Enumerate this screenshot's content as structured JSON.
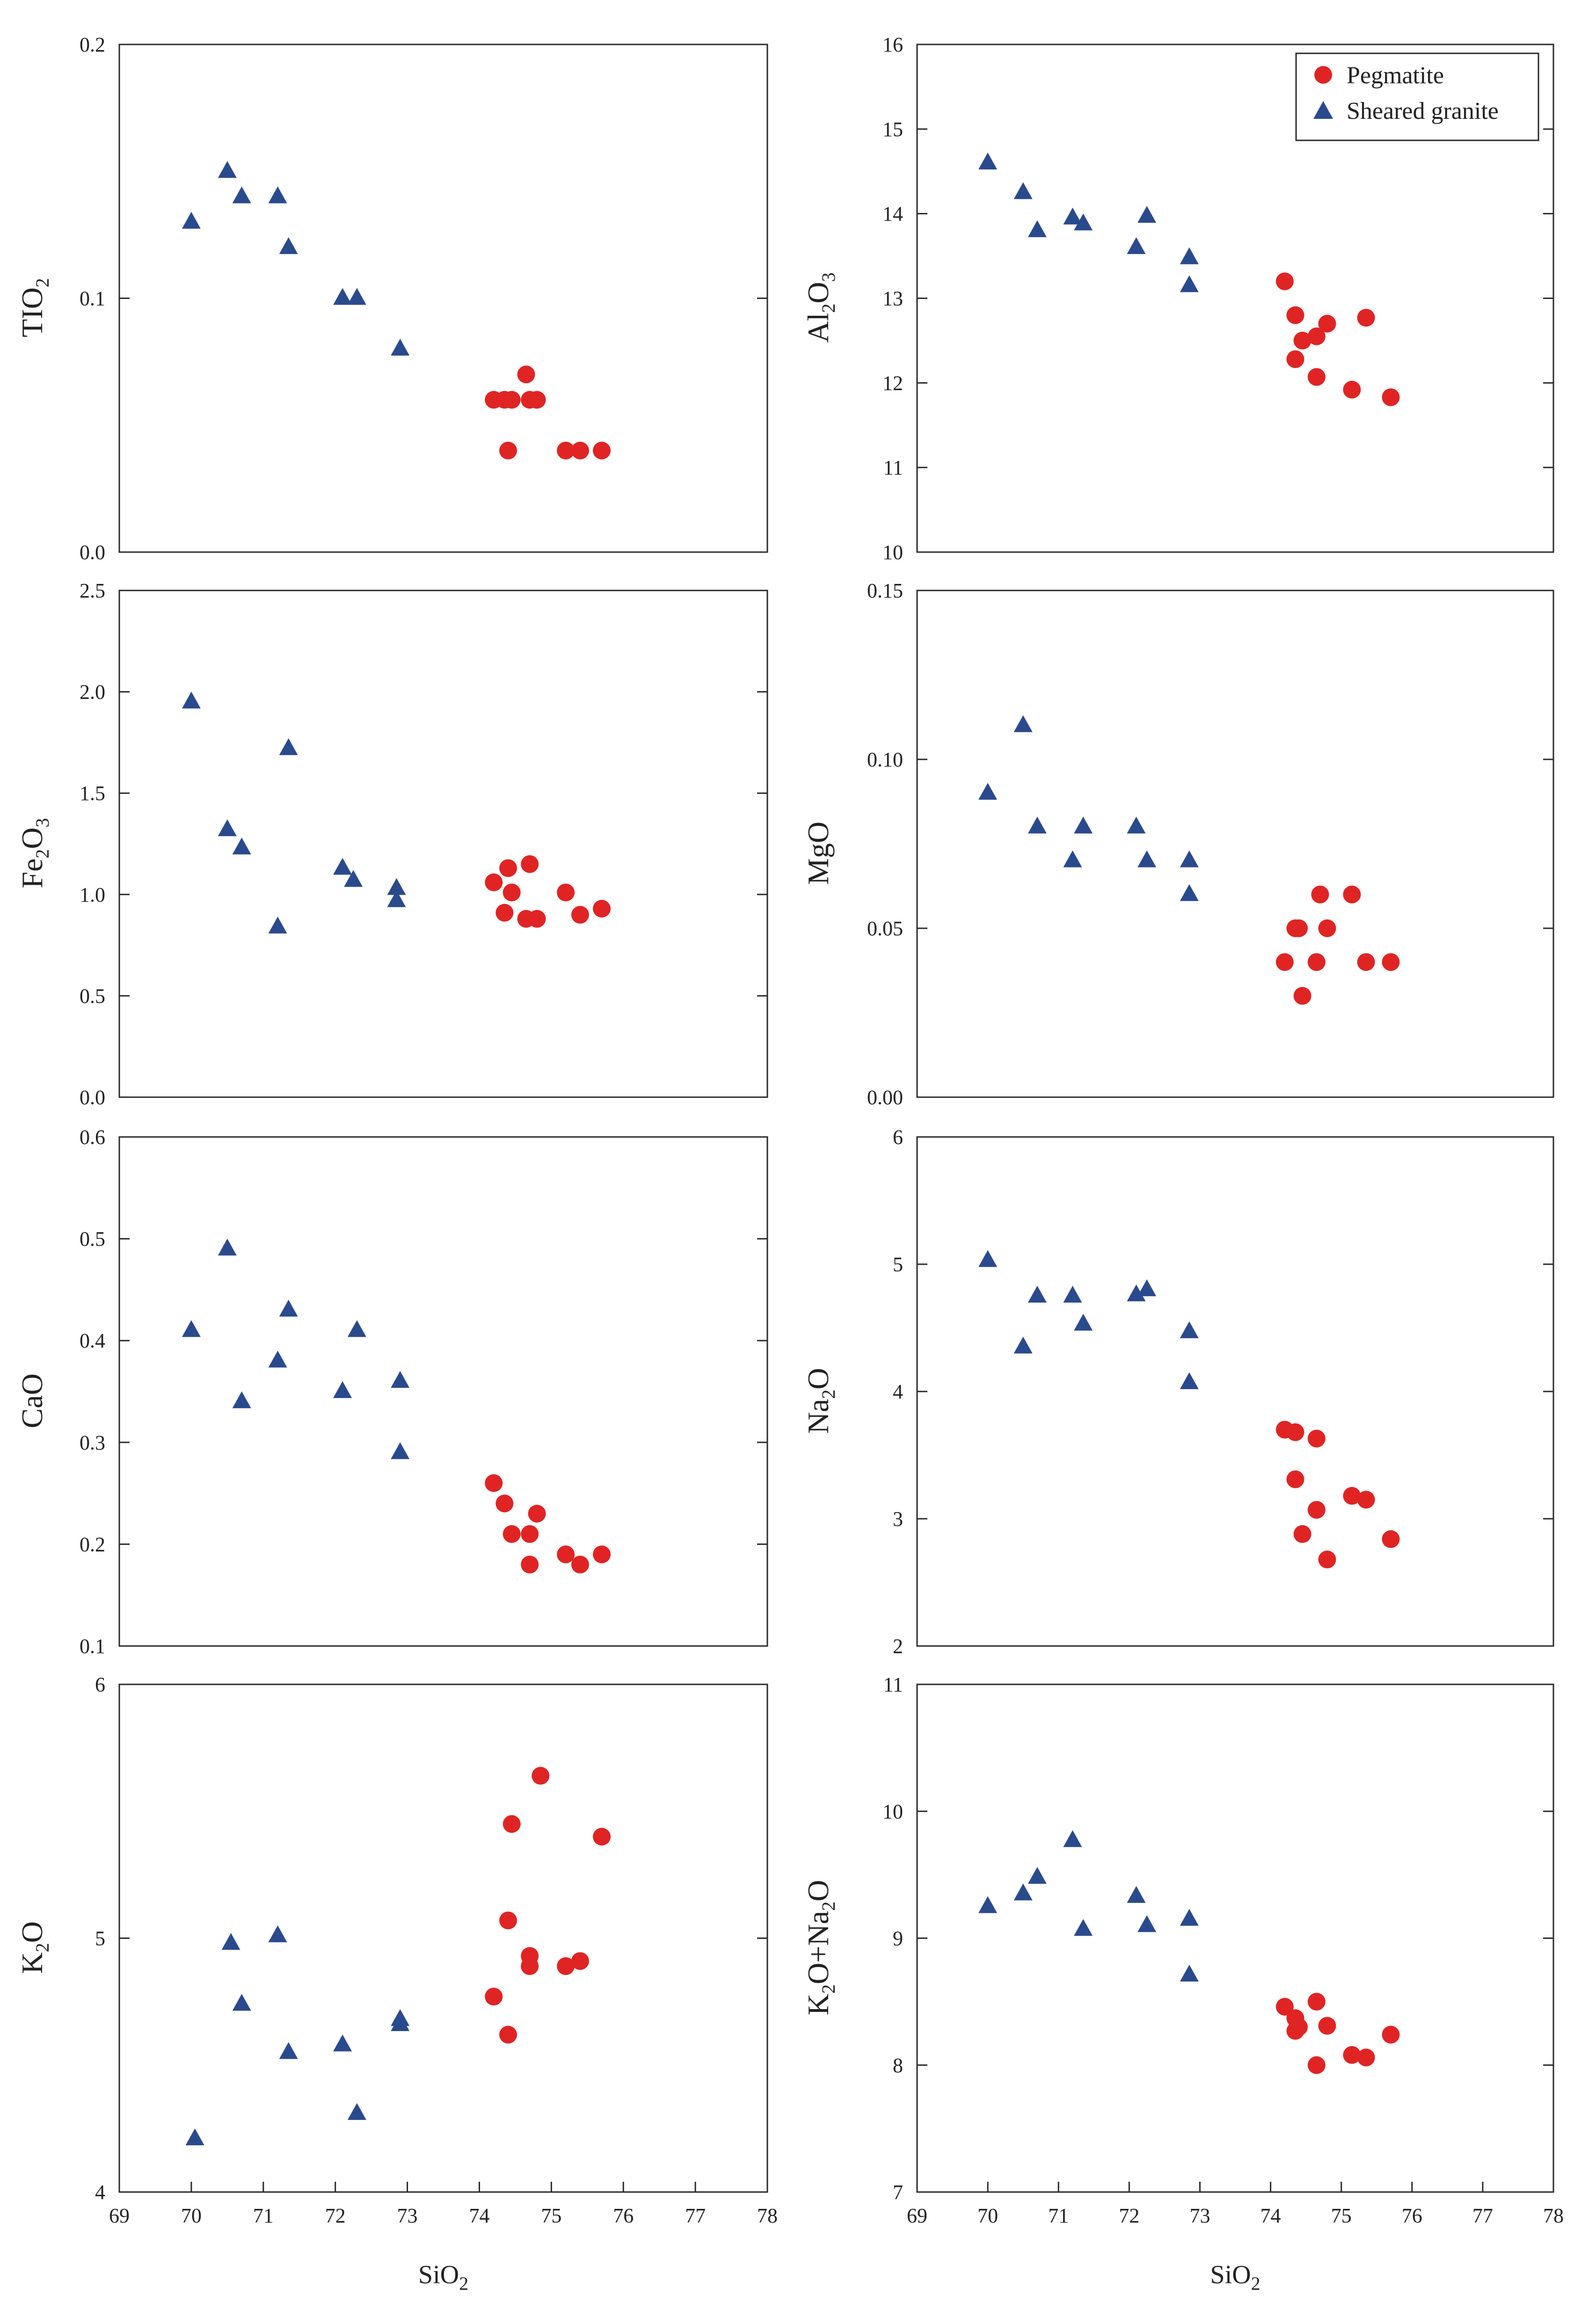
{
  "colors": {
    "pegmatite": "#e02424",
    "sheared_granite": "#2a4a8e"
  },
  "legend": {
    "pegmatite": "Pegmatite",
    "sheared_granite": "Sheared granite",
    "pegmatite_marker": "circle",
    "sheared_granite_marker": "triangle"
  },
  "chart_data": [
    {
      "type": "scatter",
      "id": "tio2",
      "ylabel": [
        "TIO",
        "2",
        ""
      ],
      "xlabel": "",
      "xlim": [
        69,
        78
      ],
      "ylim": [
        0.0,
        0.2
      ],
      "yticks": [
        0.0,
        0.1,
        0.2
      ],
      "ytick_labels": [
        "0.0",
        "0.1",
        "0.2"
      ],
      "xticks": [],
      "xtick_labels": [],
      "series": [
        {
          "name": "Sheared granite",
          "marker": "triangle",
          "x": [
            70.0,
            70.5,
            70.7,
            71.2,
            71.35,
            72.1,
            72.3,
            72.9
          ],
          "y": [
            0.13,
            0.15,
            0.14,
            0.14,
            0.12,
            0.1,
            0.1,
            0.08
          ]
        },
        {
          "name": "Pegmatite",
          "marker": "circle",
          "x": [
            74.2,
            74.35,
            74.45,
            74.4,
            74.65,
            74.7,
            74.8,
            75.2,
            75.4,
            75.7
          ],
          "y": [
            0.06,
            0.06,
            0.06,
            0.04,
            0.07,
            0.06,
            0.06,
            0.04,
            0.04,
            0.04
          ]
        }
      ]
    },
    {
      "type": "scatter",
      "id": "al2o3",
      "ylabel": [
        "Al",
        "2",
        "O",
        "3",
        ""
      ],
      "xlabel": "",
      "xlim": [
        69,
        78
      ],
      "ylim": [
        10,
        16
      ],
      "yticks": [
        10,
        11,
        12,
        13,
        14,
        15,
        16
      ],
      "ytick_labels": [
        "10",
        "11",
        "12",
        "13",
        "14",
        "15",
        "16"
      ],
      "xticks": [],
      "xtick_labels": [],
      "legend": true,
      "series": [
        {
          "name": "Sheared granite",
          "marker": "triangle",
          "x": [
            70.0,
            70.5,
            70.7,
            71.2,
            71.35,
            72.1,
            72.25,
            72.85,
            72.85
          ],
          "y": [
            14.6,
            14.25,
            13.8,
            13.95,
            13.88,
            13.6,
            13.97,
            13.48,
            13.15
          ]
        },
        {
          "name": "Pegmatite",
          "marker": "circle",
          "x": [
            74.2,
            74.35,
            74.45,
            74.35,
            74.65,
            74.8,
            74.65,
            75.15,
            75.35,
            75.7
          ],
          "y": [
            13.2,
            12.8,
            12.5,
            12.28,
            12.55,
            12.7,
            12.07,
            11.92,
            12.77,
            11.83
          ]
        }
      ]
    },
    {
      "type": "scatter",
      "id": "fe2o3",
      "ylabel": [
        "Fe",
        "2",
        "O",
        "3",
        ""
      ],
      "xlabel": "",
      "xlim": [
        69,
        78
      ],
      "ylim": [
        0.0,
        2.5
      ],
      "yticks": [
        0.0,
        0.5,
        1.0,
        1.5,
        2.0,
        2.5
      ],
      "ytick_labels": [
        "0.0",
        "0.5",
        "1.0",
        "1.5",
        "2.0",
        "2.5"
      ],
      "xticks": [],
      "xtick_labels": [],
      "series": [
        {
          "name": "Sheared granite",
          "marker": "triangle",
          "x": [
            70.0,
            70.5,
            70.7,
            71.2,
            71.35,
            72.1,
            72.25,
            72.85,
            72.85
          ],
          "y": [
            1.95,
            1.32,
            1.23,
            0.84,
            1.72,
            1.13,
            1.07,
            1.03,
            0.97
          ]
        },
        {
          "name": "Pegmatite",
          "marker": "circle",
          "x": [
            74.2,
            74.4,
            74.45,
            74.35,
            74.7,
            74.65,
            74.8,
            75.2,
            75.4,
            75.7
          ],
          "y": [
            1.06,
            1.13,
            1.01,
            0.91,
            1.15,
            0.88,
            0.88,
            1.01,
            0.9,
            0.93
          ]
        }
      ]
    },
    {
      "type": "scatter",
      "id": "mgo",
      "ylabel": [
        "MgO"
      ],
      "xlabel": "",
      "xlim": [
        69,
        78
      ],
      "ylim": [
        0.0,
        0.15
      ],
      "yticks": [
        0.0,
        0.05,
        0.1,
        0.15
      ],
      "ytick_labels": [
        "0.00",
        "0.05",
        "0.10",
        "0.15"
      ],
      "xticks": [],
      "xtick_labels": [],
      "series": [
        {
          "name": "Sheared granite",
          "marker": "triangle",
          "x": [
            70.0,
            70.5,
            70.7,
            71.2,
            71.35,
            72.1,
            72.25,
            72.85,
            72.85
          ],
          "y": [
            0.09,
            0.11,
            0.08,
            0.07,
            0.08,
            0.08,
            0.07,
            0.07,
            0.06
          ]
        },
        {
          "name": "Pegmatite",
          "marker": "circle",
          "x": [
            74.2,
            74.35,
            74.4,
            74.45,
            74.7,
            74.65,
            74.8,
            75.15,
            75.35,
            75.7
          ],
          "y": [
            0.04,
            0.05,
            0.05,
            0.03,
            0.06,
            0.04,
            0.05,
            0.06,
            0.04,
            0.04
          ]
        }
      ]
    },
    {
      "type": "scatter",
      "id": "cao",
      "ylabel": [
        "CaO"
      ],
      "xlabel": "",
      "xlim": [
        69,
        78
      ],
      "ylim": [
        0.1,
        0.6
      ],
      "yticks": [
        0.1,
        0.2,
        0.3,
        0.4,
        0.5,
        0.6
      ],
      "ytick_labels": [
        "0.1",
        "0.2",
        "0.3",
        "0.4",
        "0.5",
        "0.6"
      ],
      "xticks": [],
      "xtick_labels": [],
      "series": [
        {
          "name": "Sheared granite",
          "marker": "triangle",
          "x": [
            70.0,
            70.5,
            70.7,
            71.2,
            71.35,
            72.1,
            72.3,
            72.9,
            72.9
          ],
          "y": [
            0.41,
            0.49,
            0.34,
            0.38,
            0.43,
            0.35,
            0.41,
            0.36,
            0.29
          ]
        },
        {
          "name": "Pegmatite",
          "marker": "circle",
          "x": [
            74.2,
            74.35,
            74.45,
            74.7,
            74.7,
            74.8,
            75.2,
            75.4,
            75.7
          ],
          "y": [
            0.26,
            0.24,
            0.21,
            0.21,
            0.18,
            0.23,
            0.19,
            0.18,
            0.19
          ]
        }
      ]
    },
    {
      "type": "scatter",
      "id": "na2o",
      "ylabel": [
        "Na",
        "2",
        "O"
      ],
      "xlabel": "",
      "xlim": [
        69,
        78
      ],
      "ylim": [
        2,
        6
      ],
      "yticks": [
        2,
        3,
        4,
        5,
        6
      ],
      "ytick_labels": [
        "2",
        "3",
        "4",
        "5",
        "6"
      ],
      "xticks": [],
      "xtick_labels": [],
      "series": [
        {
          "name": "Sheared granite",
          "marker": "triangle",
          "x": [
            70.0,
            70.5,
            70.7,
            71.2,
            71.35,
            72.1,
            72.25,
            72.85,
            72.85
          ],
          "y": [
            5.03,
            4.35,
            4.75,
            4.75,
            4.53,
            4.76,
            4.8,
            4.47,
            4.07
          ]
        },
        {
          "name": "Pegmatite",
          "marker": "circle",
          "x": [
            74.2,
            74.35,
            74.35,
            74.45,
            74.65,
            74.65,
            74.8,
            75.15,
            75.35,
            75.7
          ],
          "y": [
            3.7,
            3.68,
            3.31,
            2.88,
            3.63,
            3.07,
            2.68,
            3.18,
            3.15,
            2.84
          ]
        }
      ]
    },
    {
      "type": "scatter",
      "id": "k2o",
      "ylabel": [
        "K",
        "2",
        "O"
      ],
      "xlabel": "SiO",
      "xlabel_sub": "2",
      "xlim": [
        69,
        78
      ],
      "ylim": [
        4,
        6
      ],
      "yticks": [
        4,
        5,
        6
      ],
      "ytick_labels": [
        "4",
        "5",
        "6"
      ],
      "xticks": [
        69,
        70,
        71,
        72,
        73,
        74,
        75,
        76,
        77,
        78
      ],
      "xtick_labels": [
        "69",
        "70",
        "71",
        "72",
        "73",
        "74",
        "75",
        "76",
        "77",
        "78"
      ],
      "series": [
        {
          "name": "Sheared granite",
          "marker": "triangle",
          "x": [
            70.05,
            70.55,
            70.7,
            71.2,
            71.35,
            72.1,
            72.3,
            72.9,
            72.9
          ],
          "y": [
            4.21,
            4.98,
            4.74,
            5.01,
            4.55,
            4.58,
            4.31,
            4.68,
            4.66
          ]
        },
        {
          "name": "Pegmatite",
          "marker": "circle",
          "x": [
            74.2,
            74.4,
            74.45,
            74.4,
            74.7,
            74.7,
            74.85,
            75.2,
            75.4,
            75.7
          ],
          "y": [
            4.77,
            5.07,
            5.45,
            4.62,
            4.93,
            4.89,
            5.64,
            4.89,
            4.91,
            5.4
          ]
        }
      ]
    },
    {
      "type": "scatter",
      "id": "k2o_na2o",
      "ylabel": [
        "K",
        "2",
        "O+Na",
        "2",
        "O"
      ],
      "xlabel": "SiO",
      "xlabel_sub": "2",
      "xlim": [
        69,
        78
      ],
      "ylim": [
        7,
        11
      ],
      "yticks": [
        7,
        8,
        9,
        10,
        11
      ],
      "ytick_labels": [
        "7",
        "8",
        "9",
        "10",
        "11"
      ],
      "xticks": [
        69,
        70,
        71,
        72,
        73,
        74,
        75,
        76,
        77,
        78
      ],
      "xtick_labels": [
        "69",
        "70",
        "71",
        "72",
        "73",
        "74",
        "75",
        "76",
        "77",
        "78"
      ],
      "series": [
        {
          "name": "Sheared granite",
          "marker": "triangle",
          "x": [
            70.0,
            70.5,
            70.7,
            71.2,
            71.35,
            72.1,
            72.25,
            72.85,
            72.85
          ],
          "y": [
            9.25,
            9.35,
            9.48,
            9.77,
            9.07,
            9.33,
            9.1,
            9.15,
            8.71
          ]
        },
        {
          "name": "Pegmatite",
          "marker": "circle",
          "x": [
            74.2,
            74.35,
            74.4,
            74.35,
            74.65,
            74.65,
            74.8,
            75.15,
            75.35,
            75.7
          ],
          "y": [
            8.46,
            8.37,
            8.3,
            8.27,
            8.5,
            8.0,
            8.31,
            8.08,
            8.06,
            8.24
          ]
        }
      ]
    }
  ]
}
